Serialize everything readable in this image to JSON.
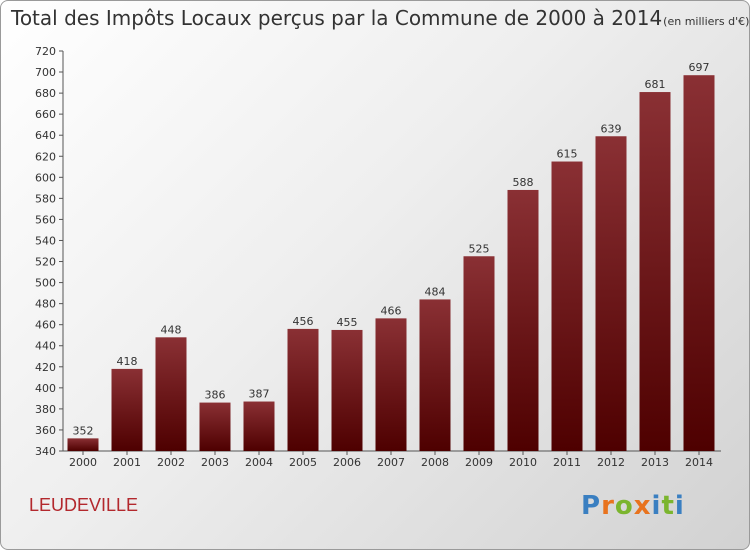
{
  "header": {
    "title": "Total des Impôts Locaux perçus par la Commune de 2000 à 2014",
    "unit": "(en milliers d'€)"
  },
  "footer": {
    "commune": "LEUDEVILLE",
    "logo": "Proxiti"
  },
  "colors": {
    "bar_top": "#8a3034",
    "bar_bottom": "#4e0000",
    "commune_text": "#b3282d"
  },
  "chart_data": {
    "type": "bar",
    "title": "Total des Impôts Locaux perçus par la Commune de 2000 à 2014",
    "ylabel": "en milliers d'€",
    "xlabel": "",
    "categories": [
      "2000",
      "2001",
      "2002",
      "2003",
      "2004",
      "2005",
      "2006",
      "2007",
      "2008",
      "2009",
      "2010",
      "2011",
      "2012",
      "2013",
      "2014"
    ],
    "values": [
      352,
      418,
      448,
      386,
      387,
      456,
      455,
      466,
      484,
      525,
      588,
      615,
      639,
      681,
      697
    ],
    "ylim": [
      340,
      720
    ],
    "ytick_step": 20,
    "grid": false,
    "legend": "none"
  }
}
